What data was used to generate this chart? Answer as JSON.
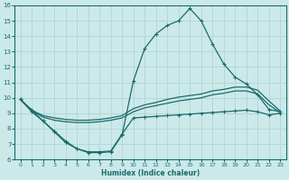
{
  "xlabel": "Humidex (Indice chaleur)",
  "xlim": [
    -0.5,
    23.5
  ],
  "ylim": [
    6,
    16
  ],
  "xticks": [
    0,
    1,
    2,
    3,
    4,
    5,
    6,
    7,
    8,
    9,
    10,
    11,
    12,
    13,
    14,
    15,
    16,
    17,
    18,
    19,
    20,
    21,
    22,
    23
  ],
  "yticks": [
    6,
    7,
    8,
    9,
    10,
    11,
    12,
    13,
    14,
    15,
    16
  ],
  "bg_color": "#cce9e9",
  "line_color": "#1a6b6b",
  "grid_color": "#b0d4d4",
  "line_max_x": [
    0,
    1,
    2,
    3,
    4,
    5,
    6,
    7,
    8,
    9,
    10,
    11,
    12,
    13,
    14,
    15,
    16,
    17,
    18,
    19,
    20,
    21,
    22,
    23
  ],
  "line_max_y": [
    9.9,
    9.2,
    8.5,
    7.8,
    7.1,
    6.7,
    6.45,
    6.45,
    6.5,
    7.6,
    11.1,
    13.2,
    14.15,
    14.7,
    15.0,
    15.8,
    15.0,
    13.5,
    12.2,
    11.35,
    10.9,
    10.2,
    9.25,
    9.1
  ],
  "line_avg1_x": [
    0,
    1,
    2,
    3,
    4,
    5,
    6,
    7,
    8,
    9,
    10,
    11,
    12,
    13,
    14,
    15,
    16,
    17,
    18,
    19,
    20,
    21,
    22,
    23
  ],
  "line_avg1_y": [
    9.9,
    9.2,
    8.85,
    8.7,
    8.6,
    8.55,
    8.55,
    8.6,
    8.7,
    8.85,
    9.3,
    9.55,
    9.7,
    9.9,
    10.05,
    10.15,
    10.25,
    10.45,
    10.55,
    10.7,
    10.7,
    10.5,
    9.8,
    9.15
  ],
  "line_avg2_x": [
    0,
    1,
    2,
    3,
    4,
    5,
    6,
    7,
    8,
    9,
    10,
    11,
    12,
    13,
    14,
    15,
    16,
    17,
    18,
    19,
    20,
    21,
    22,
    23
  ],
  "line_avg2_y": [
    9.9,
    9.2,
    8.75,
    8.55,
    8.45,
    8.4,
    8.4,
    8.45,
    8.55,
    8.7,
    9.1,
    9.35,
    9.5,
    9.65,
    9.8,
    9.9,
    10.0,
    10.2,
    10.3,
    10.45,
    10.45,
    10.25,
    9.55,
    9.05
  ],
  "line_min_x": [
    0,
    1,
    2,
    3,
    4,
    5,
    6,
    7,
    8,
    9,
    10,
    11,
    12,
    13,
    14,
    15,
    16,
    17,
    18,
    19,
    20,
    21,
    22,
    23
  ],
  "line_min_y": [
    9.9,
    9.1,
    8.5,
    7.85,
    7.2,
    6.7,
    6.5,
    6.5,
    6.55,
    7.65,
    8.7,
    8.75,
    8.8,
    8.85,
    8.9,
    8.95,
    9.0,
    9.05,
    9.1,
    9.15,
    9.2,
    9.1,
    8.9,
    9.0
  ]
}
